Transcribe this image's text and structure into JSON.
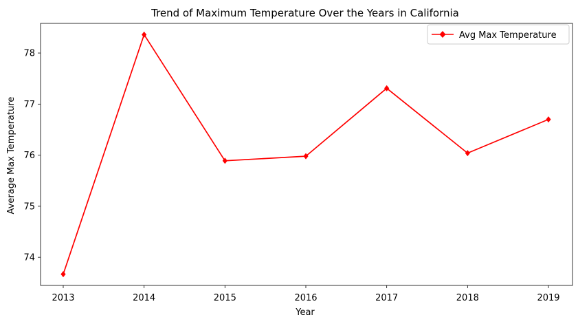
{
  "chart_data": {
    "type": "line",
    "title": "Trend of Maximum Temperature Over the Years in California",
    "xlabel": "Year",
    "ylabel": "Average Max Temperature",
    "categories": [
      "2013",
      "2014",
      "2015",
      "2016",
      "2017",
      "2018",
      "2019"
    ],
    "series": [
      {
        "name": "Avg Max Temperature",
        "values": [
          73.67,
          78.36,
          75.89,
          75.98,
          77.31,
          76.04,
          76.7
        ],
        "color": "#ff0000",
        "marker": "diamond"
      }
    ],
    "yticks": [
      74,
      75,
      76,
      77,
      78
    ],
    "ylim": [
      73.45,
      78.58
    ],
    "grid": false,
    "legend": "top-right"
  }
}
